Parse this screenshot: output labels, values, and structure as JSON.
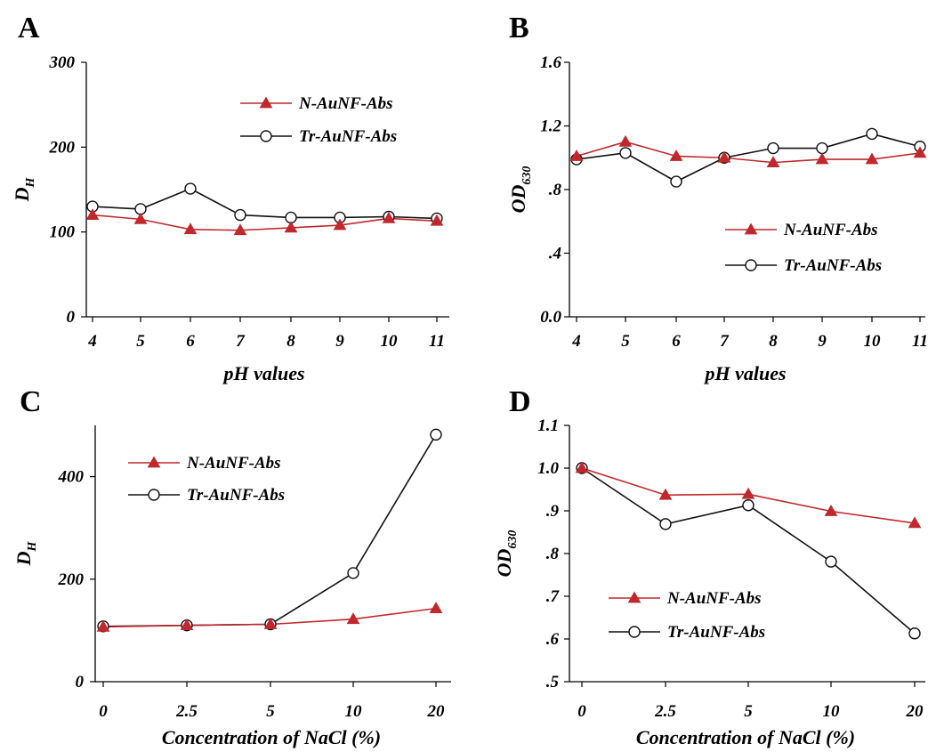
{
  "colors": {
    "red_series": "#c0282d",
    "black_series": "#111111"
  },
  "chart_data": [
    {
      "panel": "A",
      "type": "line",
      "x": [
        "4",
        "5",
        "6",
        "7",
        "8",
        "9",
        "10",
        "11"
      ],
      "xlabel": "pH values",
      "ylabel_main": "D",
      "ylabel_sub": "H",
      "ylim": [
        0,
        300
      ],
      "yticks": [
        "0",
        "100",
        "200",
        "300"
      ],
      "legend_position": "top-right",
      "series": [
        {
          "name": "N-AuNF-Abs",
          "marker": "filled-triangle",
          "values": [
            120,
            115,
            103,
            102,
            105,
            108,
            116,
            113
          ]
        },
        {
          "name": "Tr-AuNF-Abs",
          "marker": "open-circle",
          "values": [
            130,
            127,
            151,
            120,
            117,
            117,
            118,
            116
          ]
        }
      ]
    },
    {
      "panel": "B",
      "type": "line",
      "x": [
        "4",
        "5",
        "6",
        "7",
        "8",
        "9",
        "10",
        "11"
      ],
      "xlabel": "pH values",
      "ylabel_main": "OD",
      "ylabel_sub": "630",
      "ylim": [
        0,
        1.6
      ],
      "yticks": [
        "0.0",
        ".4",
        ".8",
        "1.2",
        "1.6"
      ],
      "legend_position": "bottom-right",
      "series": [
        {
          "name": "N-AuNF-Abs",
          "marker": "filled-triangle",
          "values": [
            1.01,
            1.1,
            1.01,
            1.0,
            0.97,
            0.99,
            0.99,
            1.03
          ]
        },
        {
          "name": "Tr-AuNF-Abs",
          "marker": "open-circle",
          "values": [
            0.99,
            1.03,
            0.85,
            1.0,
            1.06,
            1.06,
            1.15,
            1.07
          ]
        }
      ]
    },
    {
      "panel": "C",
      "type": "line",
      "x": [
        "0",
        "2.5",
        "5",
        "10",
        "20"
      ],
      "xlabel": "Concentration of NaCl (%)",
      "ylabel_main": "D",
      "ylabel_sub": "H",
      "ylim": [
        0,
        500
      ],
      "yticks": [
        "0",
        "200",
        "400"
      ],
      "legend_position": "top-left",
      "series": [
        {
          "name": "N-AuNF-Abs",
          "marker": "filled-triangle",
          "values": [
            107,
            110,
            112,
            122,
            143
          ]
        },
        {
          "name": "Tr-AuNF-Abs",
          "marker": "open-circle",
          "values": [
            108,
            110,
            112,
            212,
            482
          ]
        }
      ]
    },
    {
      "panel": "D",
      "type": "line",
      "x": [
        "0",
        "2.5",
        "5",
        "10",
        "20"
      ],
      "xlabel": "Concentration of NaCl (%)",
      "ylabel_main": "OD",
      "ylabel_sub": "630",
      "ylim": [
        0.5,
        1.1
      ],
      "yticks": [
        ".5",
        ".6",
        ".7",
        ".8",
        ".9",
        "1.0",
        "1.1"
      ],
      "legend_position": "bottom-left",
      "series": [
        {
          "name": "N-AuNF-Abs",
          "marker": "filled-triangle",
          "values": [
            1.0,
            0.937,
            0.939,
            0.899,
            0.871
          ]
        },
        {
          "name": "Tr-AuNF-Abs",
          "marker": "open-circle",
          "values": [
            1.0,
            0.869,
            0.913,
            0.781,
            0.613
          ]
        }
      ]
    }
  ]
}
